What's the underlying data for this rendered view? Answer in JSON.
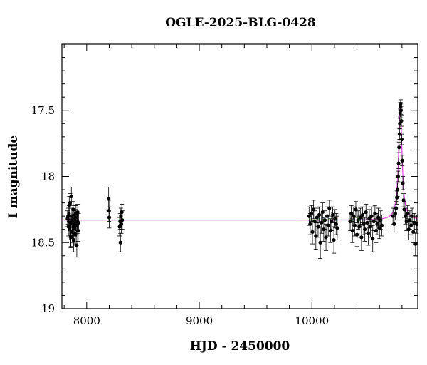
{
  "chart_data": {
    "type": "scatter",
    "title": "OGLE-2025-BLG-0428",
    "xlabel": "HJD - 2450000",
    "ylabel": "I magnitude",
    "xlim": [
      7780,
      10940
    ],
    "ylim": [
      19.0,
      17.0
    ],
    "y_inverted": true,
    "x_ticks": [
      8000,
      9000,
      10000
    ],
    "y_ticks": [
      17.5,
      18,
      18.5,
      19
    ],
    "x_tick_labels": [
      "8000",
      "9000",
      "10000"
    ],
    "y_tick_labels": [
      "17.5",
      "18",
      "18.5",
      "19"
    ],
    "grid": false,
    "colors": {
      "points": "#000000",
      "model": "#e040e0",
      "axes": "#000000"
    },
    "model": {
      "baseline_mag": 18.33,
      "peak_mag": 17.46,
      "peak_hjd": 10785,
      "width_days": 22
    },
    "points": {
      "x": [
        7830,
        7838,
        7842,
        7848,
        7852,
        7856,
        7860,
        7864,
        7868,
        7872,
        7876,
        7880,
        7884,
        7888,
        7892,
        7896,
        7900,
        7904,
        7908,
        7912,
        7916,
        7920,
        7924,
        7928,
        7835,
        7845,
        7858,
        7870,
        7882,
        7895,
        7905,
        7918,
        8195,
        8198,
        8200,
        8292,
        8297,
        8300,
        8304,
        8308,
        8312,
        8316,
        9975,
        9985,
        9995,
        10005,
        10015,
        10025,
        10035,
        10045,
        10055,
        10065,
        10075,
        10085,
        10095,
        10105,
        10115,
        10125,
        10135,
        10145,
        10155,
        10165,
        10175,
        10185,
        10195,
        10205,
        10215,
        10225,
        10340,
        10350,
        10360,
        10370,
        10380,
        10390,
        10400,
        10410,
        10420,
        10430,
        10440,
        10450,
        10460,
        10470,
        10480,
        10490,
        10500,
        10510,
        10520,
        10530,
        10540,
        10550,
        10560,
        10570,
        10580,
        10590,
        10600,
        10610,
        10620,
        10720,
        10730,
        10740,
        10748,
        10755,
        10760,
        10765,
        10770,
        10774,
        10778,
        10781,
        10784,
        10786,
        10788,
        10791,
        10794,
        10798,
        10802,
        10808,
        10814,
        10820,
        10830,
        10840,
        10850,
        10860,
        10870,
        10880,
        10890,
        10900,
        10910,
        10920,
        10930
      ],
      "y": [
        18.32,
        18.38,
        18.28,
        18.4,
        18.2,
        18.35,
        18.45,
        18.15,
        18.3,
        18.42,
        18.36,
        18.25,
        18.48,
        18.33,
        18.39,
        18.29,
        18.44,
        18.31,
        18.37,
        18.52,
        18.34,
        18.27,
        18.41,
        18.35,
        18.3,
        18.22,
        18.46,
        18.33,
        18.38,
        18.43,
        18.28,
        18.36,
        18.17,
        18.26,
        18.31,
        18.38,
        18.34,
        18.5,
        18.3,
        18.36,
        18.27,
        18.33,
        18.3,
        18.36,
        18.28,
        18.42,
        18.25,
        18.34,
        18.45,
        18.31,
        18.38,
        18.29,
        18.5,
        18.35,
        18.27,
        18.4,
        18.33,
        18.46,
        18.3,
        18.37,
        18.24,
        18.41,
        18.34,
        18.29,
        18.48,
        18.32,
        18.36,
        18.39,
        18.34,
        18.28,
        18.41,
        18.3,
        18.37,
        18.25,
        18.44,
        18.33,
        18.38,
        18.31,
        18.46,
        18.29,
        18.36,
        18.4,
        18.27,
        18.35,
        18.43,
        18.32,
        18.38,
        18.3,
        18.47,
        18.34,
        18.28,
        18.41,
        18.36,
        18.31,
        18.39,
        18.33,
        18.37,
        18.3,
        18.36,
        18.28,
        18.24,
        18.16,
        18.1,
        18.0,
        17.9,
        17.78,
        17.68,
        17.6,
        17.52,
        17.47,
        17.45,
        17.5,
        17.58,
        17.72,
        17.88,
        18.05,
        18.18,
        18.25,
        18.3,
        18.34,
        18.28,
        18.4,
        18.33,
        18.37,
        18.3,
        18.42,
        18.35,
        18.51,
        18.36
      ],
      "err": [
        0.06,
        0.07,
        0.06,
        0.08,
        0.07,
        0.06,
        0.08,
        0.07,
        0.06,
        0.08,
        0.07,
        0.06,
        0.09,
        0.07,
        0.06,
        0.07,
        0.08,
        0.06,
        0.07,
        0.09,
        0.07,
        0.06,
        0.08,
        0.07,
        0.06,
        0.07,
        0.08,
        0.06,
        0.07,
        0.08,
        0.06,
        0.07,
        0.09,
        0.08,
        0.08,
        0.07,
        0.06,
        0.07,
        0.06,
        0.07,
        0.06,
        0.07,
        0.07,
        0.08,
        0.06,
        0.09,
        0.07,
        0.08,
        0.1,
        0.07,
        0.08,
        0.06,
        0.12,
        0.08,
        0.07,
        0.09,
        0.07,
        0.1,
        0.07,
        0.08,
        0.06,
        0.09,
        0.07,
        0.06,
        0.1,
        0.07,
        0.08,
        0.09,
        0.07,
        0.06,
        0.09,
        0.07,
        0.08,
        0.06,
        0.09,
        0.07,
        0.08,
        0.07,
        0.1,
        0.06,
        0.08,
        0.09,
        0.06,
        0.08,
        0.09,
        0.07,
        0.08,
        0.07,
        0.1,
        0.07,
        0.06,
        0.09,
        0.08,
        0.07,
        0.08,
        0.07,
        0.08,
        0.06,
        0.06,
        0.05,
        0.05,
        0.05,
        0.05,
        0.04,
        0.04,
        0.04,
        0.04,
        0.04,
        0.03,
        0.03,
        0.03,
        0.03,
        0.04,
        0.04,
        0.04,
        0.05,
        0.05,
        0.06,
        0.06,
        0.07,
        0.06,
        0.08,
        0.07,
        0.07,
        0.06,
        0.08,
        0.07,
        0.09,
        0.07
      ]
    }
  }
}
